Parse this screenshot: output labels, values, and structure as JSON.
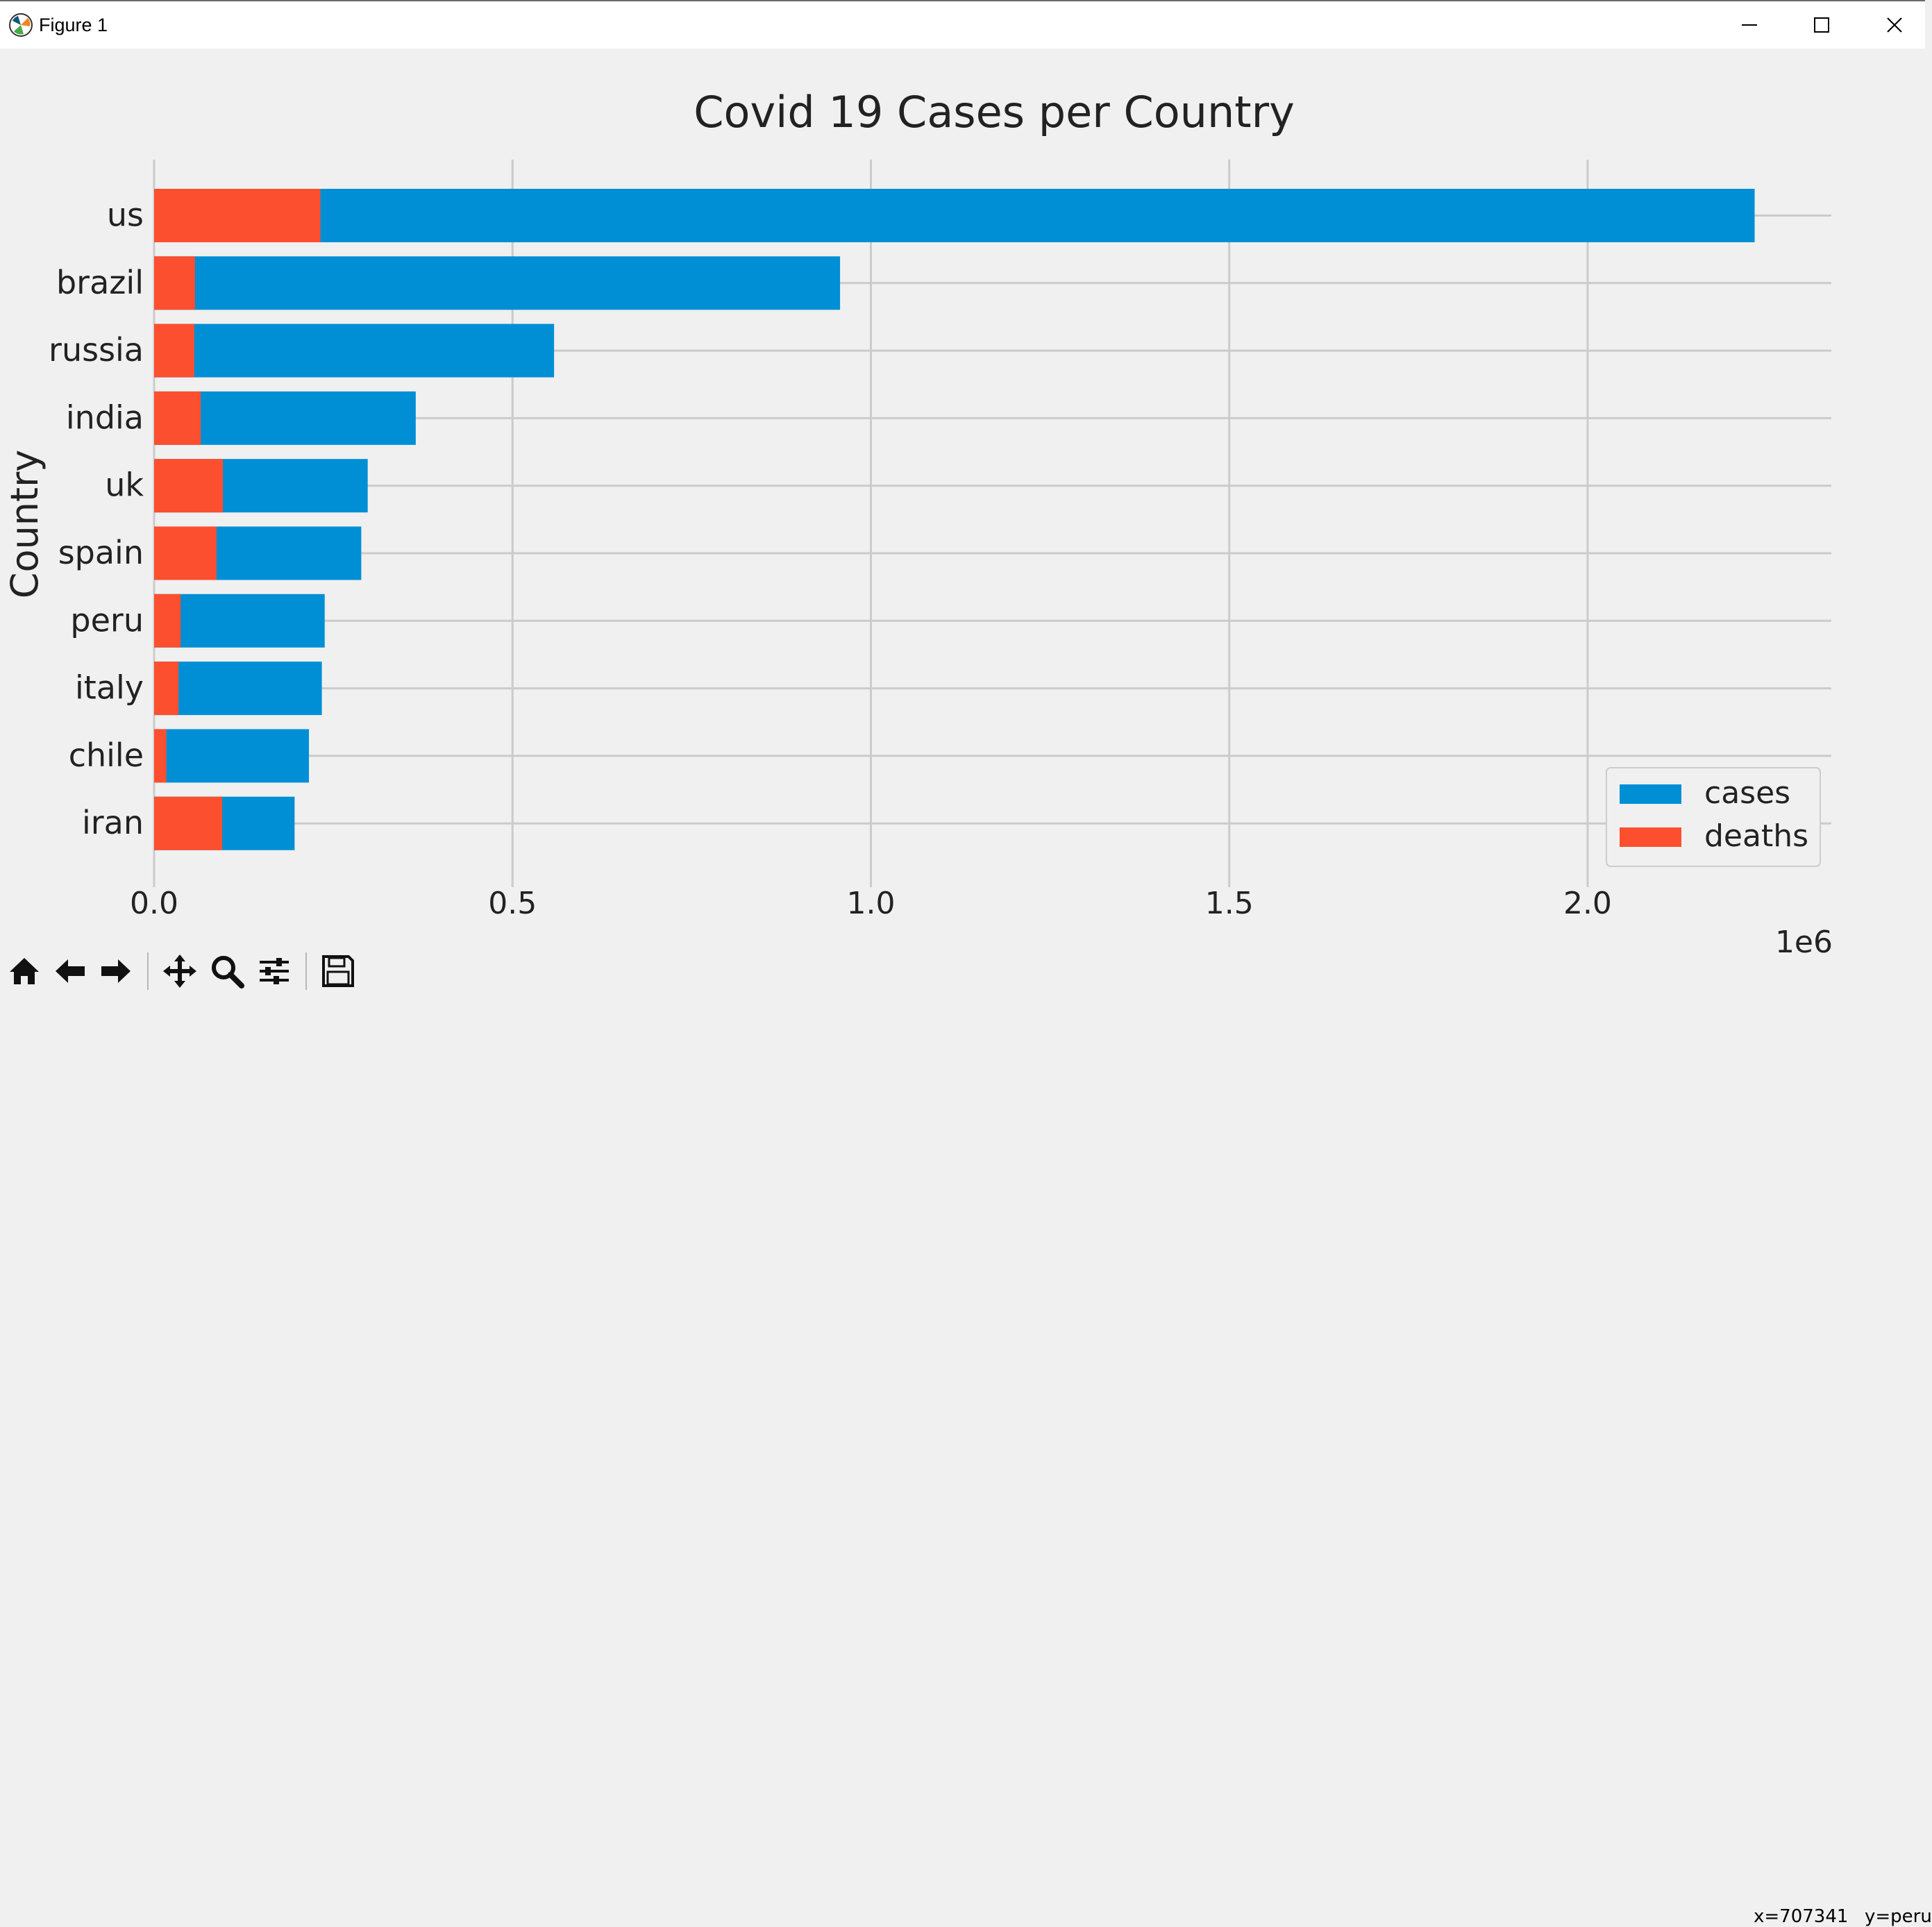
{
  "window": {
    "title": "Figure 1",
    "controls": [
      "minimize",
      "maximize",
      "close"
    ]
  },
  "colors": {
    "cases": "#008fd5",
    "deaths": "#fc4f30",
    "grid": "#cbcbcb",
    "background": "#f0f0f0"
  },
  "chart_data": {
    "type": "bar",
    "orientation": "horizontal",
    "stacked": "overlay",
    "title": "Covid 19 Cases per Country",
    "xlabel": "",
    "ylabel": "Country",
    "x_offset_label": "1e6",
    "categories": [
      "us",
      "brazil",
      "russia",
      "india",
      "uk",
      "spain",
      "peru",
      "italy",
      "chile",
      "iran"
    ],
    "series": [
      {
        "name": "cases",
        "values": [
          2233000,
          957000,
          558000,
          365000,
          298000,
          289000,
          238000,
          234000,
          216000,
          196000
        ]
      },
      {
        "name": "deaths",
        "values": [
          232000,
          57000,
          56000,
          65000,
          96000,
          87000,
          37000,
          34000,
          17000,
          95000
        ]
      }
    ],
    "xlim": [
      0,
      2340000
    ],
    "x_ticks": [
      0,
      500000,
      1000000,
      1500000,
      2000000
    ],
    "x_tick_labels": [
      "0.0",
      "0.5",
      "1.0",
      "1.5",
      "2.0"
    ],
    "grid": true,
    "legend": "bottom-right"
  },
  "toolbar": {
    "buttons": [
      {
        "name": "home-button",
        "icon": "home-icon"
      },
      {
        "name": "back-button",
        "icon": "arrow-left-icon"
      },
      {
        "name": "forward-button",
        "icon": "arrow-right-icon"
      },
      {
        "name": "pan-button",
        "icon": "move-icon"
      },
      {
        "name": "zoom-button",
        "icon": "magnifier-icon"
      },
      {
        "name": "configure-subplots-button",
        "icon": "sliders-icon"
      },
      {
        "name": "save-button",
        "icon": "floppy-disk-icon"
      }
    ]
  },
  "status": {
    "x_readout": "x=707341",
    "y_readout": "y=peru"
  }
}
